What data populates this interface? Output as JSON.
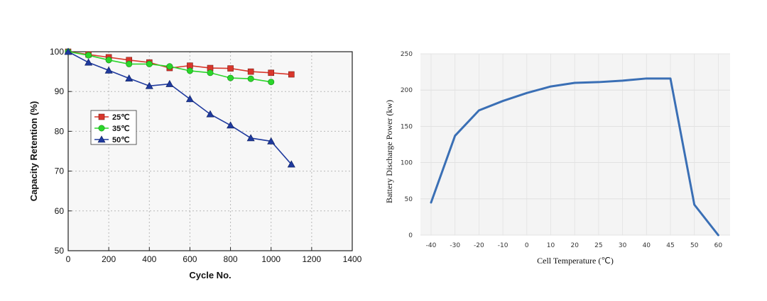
{
  "chart_data": [
    {
      "type": "line",
      "title": "",
      "xlabel": "Cycle No.",
      "ylabel": "Capacity Retention (%)",
      "xlim": [
        0,
        1400
      ],
      "ylim": [
        50,
        100
      ],
      "xticks": [
        0,
        200,
        400,
        600,
        800,
        1000,
        1200,
        1400
      ],
      "yticks": [
        50,
        60,
        70,
        80,
        90,
        100
      ],
      "grid": true,
      "legend": "middle-left",
      "series": [
        {
          "name": "25℃",
          "color": "#d9362b",
          "marker": "square",
          "x": [
            0,
            100,
            200,
            300,
            400,
            500,
            600,
            700,
            800,
            900,
            1000,
            1100
          ],
          "y": [
            100,
            99.3,
            98.6,
            97.9,
            97.3,
            95.9,
            96.5,
            95.9,
            95.8,
            95.0,
            94.7,
            94.3
          ]
        },
        {
          "name": "35℃",
          "color": "#2bd62b",
          "marker": "circle",
          "x": [
            0,
            100,
            200,
            300,
            400,
            500,
            600,
            700,
            800,
            900,
            1000
          ],
          "y": [
            100,
            99.1,
            97.9,
            96.9,
            96.9,
            96.3,
            95.2,
            94.7,
            93.4,
            93.2,
            92.4
          ]
        },
        {
          "name": "50℃",
          "color": "#1f3a9e",
          "marker": "triangle",
          "x": [
            0,
            100,
            200,
            300,
            400,
            500,
            600,
            700,
            800,
            900,
            1000,
            1100
          ],
          "y": [
            100,
            97.3,
            95.3,
            93.3,
            91.4,
            91.9,
            88.1,
            84.3,
            81.5,
            78.3,
            77.5,
            71.7
          ]
        }
      ]
    },
    {
      "type": "line",
      "title": "",
      "xlabel": "Cell Temperature (℃)",
      "ylabel": "Battery Discharge Power (kw)",
      "categories": [
        "-40",
        "-30",
        "-20",
        "-10",
        "0",
        "10",
        "20",
        "25",
        "30",
        "40",
        "45",
        "50",
        "60"
      ],
      "ylim": [
        0,
        250
      ],
      "yticks": [
        0,
        50,
        100,
        150,
        200,
        250
      ],
      "grid": true,
      "series": [
        {
          "color": "#3a6fb5",
          "values": [
            45,
            137,
            172,
            185,
            196,
            205,
            210,
            211,
            213,
            216,
            216,
            42,
            0
          ]
        }
      ]
    }
  ]
}
